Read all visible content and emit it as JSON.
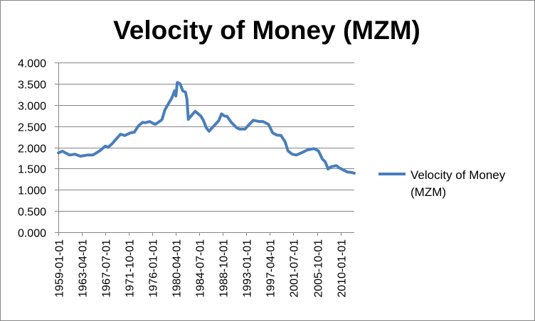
{
  "chart_data": {
    "type": "line",
    "title": "Velocity of Money (MZM)",
    "xlabel": "",
    "ylabel": "",
    "ylim": [
      0,
      4
    ],
    "y_ticks": [
      "0.000",
      "0.500",
      "1.000",
      "1.500",
      "2.000",
      "2.500",
      "3.000",
      "3.500",
      "4.000"
    ],
    "x_ticks": [
      "1959-01-01",
      "1963-04-01",
      "1967-07-01",
      "1971-10-01",
      "1976-01-01",
      "1980-04-01",
      "1984-07-01",
      "1988-10-01",
      "1993-01-01",
      "1997-04-01",
      "2001-07-01",
      "2005-10-01",
      "2010-01-01"
    ],
    "grid": "horizontal",
    "legend": "right",
    "series": [
      {
        "name": "Velocity of Money (MZM)",
        "color": "#4a7ebb",
        "x": [
          "1959-01-01",
          "1959-10-01",
          "1961-01-01",
          "1962-01-01",
          "1963-01-01",
          "1964-04-01",
          "1965-04-01",
          "1966-07-01",
          "1967-07-01",
          "1968-01-01",
          "1968-10-01",
          "1969-10-01",
          "1970-04-01",
          "1971-01-01",
          "1972-01-01",
          "1972-10-01",
          "1973-07-01",
          "1974-04-01",
          "1974-10-01",
          "1975-07-01",
          "1976-07-01",
          "1977-07-01",
          "1977-10-01",
          "1978-04-01",
          "1979-01-01",
          "1979-07-01",
          "1980-01-01",
          "1980-04-01",
          "1980-07-01",
          "1981-01-01",
          "1981-07-01",
          "1982-01-01",
          "1982-04-01",
          "1982-07-01",
          "1983-01-01",
          "1983-10-01",
          "1984-10-01",
          "1985-04-01",
          "1985-10-01",
          "1986-04-01",
          "1987-01-01",
          "1988-01-01",
          "1988-07-01",
          "1989-01-01",
          "1989-07-01",
          "1990-04-01",
          "1991-04-01",
          "1991-10-01",
          "1992-10-01",
          "1993-07-01",
          "1994-04-01",
          "1995-04-01",
          "1996-01-01",
          "1997-01-01",
          "1997-10-01",
          "1998-07-01",
          "1999-04-01",
          "2000-01-01",
          "2000-07-01",
          "2001-04-01",
          "2002-01-01",
          "2002-10-01",
          "2003-04-01",
          "2004-01-01",
          "2005-04-01",
          "2006-01-01",
          "2006-10-01",
          "2007-04-01",
          "2007-10-01",
          "2008-04-01",
          "2009-04-01",
          "2009-10-01",
          "2010-07-01",
          "2011-04-01",
          "2012-01-01",
          "2012-07-01"
        ],
        "y": [
          1.87,
          1.91,
          1.82,
          1.84,
          1.79,
          1.82,
          1.82,
          1.92,
          2.03,
          2.0,
          2.09,
          2.24,
          2.31,
          2.28,
          2.34,
          2.36,
          2.51,
          2.59,
          2.58,
          2.61,
          2.54,
          2.63,
          2.66,
          2.88,
          3.05,
          3.16,
          3.33,
          3.21,
          3.53,
          3.5,
          3.33,
          3.3,
          3.13,
          2.66,
          2.74,
          2.85,
          2.74,
          2.63,
          2.46,
          2.38,
          2.49,
          2.63,
          2.79,
          2.74,
          2.73,
          2.59,
          2.46,
          2.43,
          2.43,
          2.54,
          2.64,
          2.61,
          2.61,
          2.54,
          2.34,
          2.29,
          2.28,
          2.13,
          1.92,
          1.84,
          1.82,
          1.86,
          1.89,
          1.94,
          1.97,
          1.92,
          1.72,
          1.66,
          1.49,
          1.54,
          1.57,
          1.52,
          1.47,
          1.42,
          1.41,
          1.39
        ]
      }
    ]
  },
  "legend_lines": [
    "Velocity of Money",
    "(MZM)"
  ],
  "colors": {
    "frame": "#868686",
    "grid": "#868686",
    "axis": "#868686",
    "line": "#4a7ebb"
  }
}
